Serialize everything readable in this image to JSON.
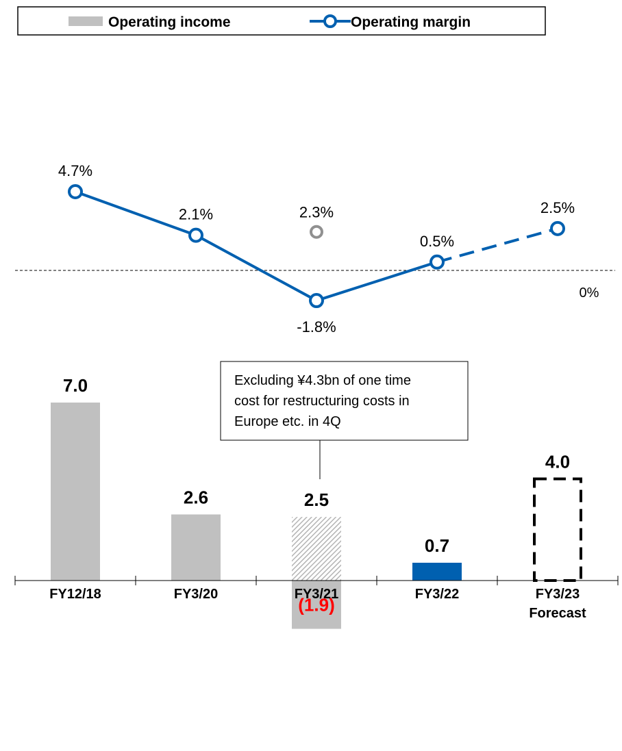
{
  "legend": {
    "income_label": "Operating income",
    "margin_label": "Operating margin"
  },
  "colors": {
    "income_bar": "#c0c0c0",
    "highlight_bar": "#0060b0",
    "margin_line": "#0060b0",
    "excluded_marker": "#909090",
    "negative_label": "#ff0000"
  },
  "chart_data": {
    "type": "bar",
    "categories": [
      "FY12/18",
      "FY3/20",
      "FY3/21",
      "FY3/22",
      "FY3/23 Forecast"
    ],
    "category_lines": [
      [
        "FY12/18"
      ],
      [
        "FY3/20"
      ],
      [
        "FY3/21"
      ],
      [
        "FY3/22"
      ],
      [
        "FY3/23",
        "Forecast"
      ]
    ],
    "series": [
      {
        "name": "Operating income",
        "values": [
          7.0,
          2.6,
          -1.9,
          0.7,
          4.0
        ],
        "labels": [
          "7.0",
          "2.6",
          "(1.9)",
          "0.7",
          "4.0"
        ],
        "styles": [
          "solid",
          "solid",
          "solid",
          "highlight",
          "dashed-outline"
        ]
      },
      {
        "name": "Operating margin",
        "values": [
          4.7,
          2.1,
          -1.8,
          0.5,
          2.5
        ],
        "labels": [
          "4.7%",
          "2.1%",
          "-1.8%",
          "0.5%",
          "2.5%"
        ],
        "forecast_from_index": 3
      }
    ],
    "excluded_one_time": {
      "category_index": 2,
      "income_value": 2.5,
      "income_label": "2.5",
      "margin_value": 2.3,
      "margin_label": "2.3%"
    },
    "margin_zero_label": "0%",
    "annotation": {
      "category_index": 2,
      "lines": [
        "Excluding ¥4.3bn of one time",
        "cost for restructuring costs in",
        "Europe etc. in 4Q"
      ]
    }
  }
}
